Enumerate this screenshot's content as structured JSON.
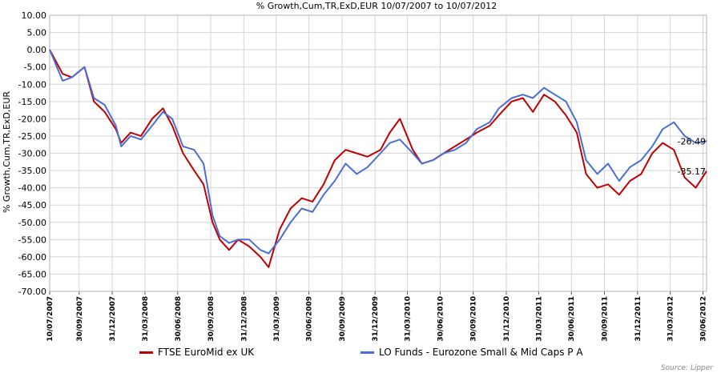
{
  "chart_data": {
    "type": "line",
    "title": "% Growth,Cum,TR,ExD,EUR 10/07/2007 to 10/07/2012",
    "ylabel": "% Growth,Cum,TR,ExD,EUR",
    "xlabel": "",
    "ylim": [
      -70,
      10
    ],
    "y_ticks": [
      "10.00",
      "5.00",
      "0.00",
      "-5.00",
      "-10.00",
      "-15.00",
      "-20.00",
      "-25.00",
      "-30.00",
      "-35.00",
      "-40.00",
      "-45.00",
      "-50.00",
      "-55.00",
      "-60.00",
      "-65.00",
      "-70.00"
    ],
    "x_ticks": [
      "10/07/2007",
      "30/09/2007",
      "31/12/2007",
      "31/03/2008",
      "30/06/2008",
      "30/09/2008",
      "31/12/2008",
      "31/03/2009",
      "30/06/2009",
      "30/09/2009",
      "31/12/2009",
      "31/03/2010",
      "30/06/2010",
      "30/09/2010",
      "31/12/2010",
      "31/03/2011",
      "30/06/2011",
      "30/09/2011",
      "31/12/2011",
      "31/03/2012",
      "30/06/2012"
    ],
    "grid": true,
    "legend": "bottom",
    "series": [
      {
        "name": "FTSE EuroMid ex UK",
        "color": "#c00000",
        "end_label": "-35.17",
        "x": [
          "2007-07-10",
          "2007-08-15",
          "2007-09-10",
          "2007-10-15",
          "2007-11-10",
          "2007-12-10",
          "2008-01-10",
          "2008-01-25",
          "2008-02-20",
          "2008-03-20",
          "2008-04-20",
          "2008-05-20",
          "2008-06-15",
          "2008-07-15",
          "2008-08-15",
          "2008-09-10",
          "2008-10-05",
          "2008-10-25",
          "2008-11-20",
          "2008-12-15",
          "2009-01-15",
          "2009-02-15",
          "2009-03-10",
          "2009-04-10",
          "2009-05-10",
          "2009-06-10",
          "2009-07-10",
          "2009-08-10",
          "2009-09-10",
          "2009-10-10",
          "2009-11-10",
          "2009-12-10",
          "2010-01-15",
          "2010-02-10",
          "2010-03-10",
          "2010-04-15",
          "2010-05-10",
          "2010-06-10",
          "2010-07-10",
          "2010-08-10",
          "2010-09-10",
          "2010-10-10",
          "2010-11-15",
          "2010-12-10",
          "2011-01-15",
          "2011-02-15",
          "2011-03-15",
          "2011-04-15",
          "2011-05-15",
          "2011-06-15",
          "2011-07-15",
          "2011-08-10",
          "2011-09-10",
          "2011-10-10",
          "2011-11-10",
          "2011-12-10",
          "2012-01-10",
          "2012-02-10",
          "2012-03-10",
          "2012-04-10",
          "2012-05-10",
          "2012-06-10",
          "2012-07-10"
        ],
        "values": [
          0.0,
          -7.0,
          -8.0,
          -5.0,
          -15.0,
          -18.0,
          -23.0,
          -27.0,
          -24.0,
          -25.0,
          -20.0,
          -17.0,
          -22.0,
          -30.0,
          -35.0,
          -39.0,
          -50.0,
          -55.0,
          -58.0,
          -55.0,
          -57.0,
          -60.0,
          -63.0,
          -52.0,
          -46.0,
          -43.0,
          -44.0,
          -39.0,
          -32.0,
          -29.0,
          -30.0,
          -31.0,
          -29.0,
          -24.0,
          -20.0,
          -29.0,
          -33.0,
          -32.0,
          -30.0,
          -28.0,
          -26.0,
          -24.0,
          -22.0,
          -19.0,
          -15.0,
          -14.0,
          -18.0,
          -13.0,
          -15.0,
          -19.0,
          -24.0,
          -36.0,
          -40.0,
          -39.0,
          -42.0,
          -38.0,
          -36.0,
          -30.0,
          -27.0,
          -29.0,
          -37.0,
          -40.0,
          -35.17
        ]
      },
      {
        "name": "LO Funds - Eurozone Small & Mid Caps P A",
        "color": "#4a6fd4",
        "end_label": "-26.49",
        "x": [
          "2007-07-10",
          "2007-08-15",
          "2007-09-10",
          "2007-10-15",
          "2007-11-10",
          "2007-12-10",
          "2008-01-10",
          "2008-01-25",
          "2008-02-20",
          "2008-03-20",
          "2008-04-20",
          "2008-05-20",
          "2008-06-15",
          "2008-07-15",
          "2008-08-15",
          "2008-09-10",
          "2008-10-05",
          "2008-10-25",
          "2008-11-20",
          "2008-12-15",
          "2009-01-15",
          "2009-02-15",
          "2009-03-10",
          "2009-04-10",
          "2009-05-10",
          "2009-06-10",
          "2009-07-10",
          "2009-08-10",
          "2009-09-10",
          "2009-10-10",
          "2009-11-10",
          "2009-12-10",
          "2010-01-15",
          "2010-02-10",
          "2010-03-10",
          "2010-04-15",
          "2010-05-10",
          "2010-06-10",
          "2010-07-10",
          "2010-08-10",
          "2010-09-10",
          "2010-10-10",
          "2010-11-15",
          "2010-12-10",
          "2011-01-15",
          "2011-02-15",
          "2011-03-15",
          "2011-04-15",
          "2011-05-15",
          "2011-06-15",
          "2011-07-15",
          "2011-08-10",
          "2011-09-10",
          "2011-10-10",
          "2011-11-10",
          "2011-12-10",
          "2012-01-10",
          "2012-02-10",
          "2012-03-10",
          "2012-04-10",
          "2012-05-10",
          "2012-06-10",
          "2012-07-10"
        ],
        "values": [
          0.0,
          -9.0,
          -8.0,
          -5.0,
          -14.0,
          -16.0,
          -22.0,
          -28.0,
          -25.0,
          -26.0,
          -22.0,
          -18.0,
          -20.0,
          -28.0,
          -29.0,
          -33.0,
          -48.0,
          -54.0,
          -56.0,
          -55.0,
          -55.0,
          -58.0,
          -59.0,
          -55.0,
          -50.0,
          -46.0,
          -47.0,
          -42.0,
          -38.0,
          -33.0,
          -36.0,
          -34.0,
          -30.0,
          -27.0,
          -26.0,
          -30.0,
          -33.0,
          -32.0,
          -30.0,
          -29.0,
          -27.0,
          -23.0,
          -21.0,
          -17.0,
          -14.0,
          -13.0,
          -14.0,
          -11.0,
          -13.0,
          -15.0,
          -21.0,
          -32.0,
          -36.0,
          -33.0,
          -38.0,
          -34.0,
          -32.0,
          -28.0,
          -23.0,
          -21.0,
          -25.0,
          -27.0,
          -26.49
        ]
      }
    ],
    "source": "Source: Lipper"
  }
}
